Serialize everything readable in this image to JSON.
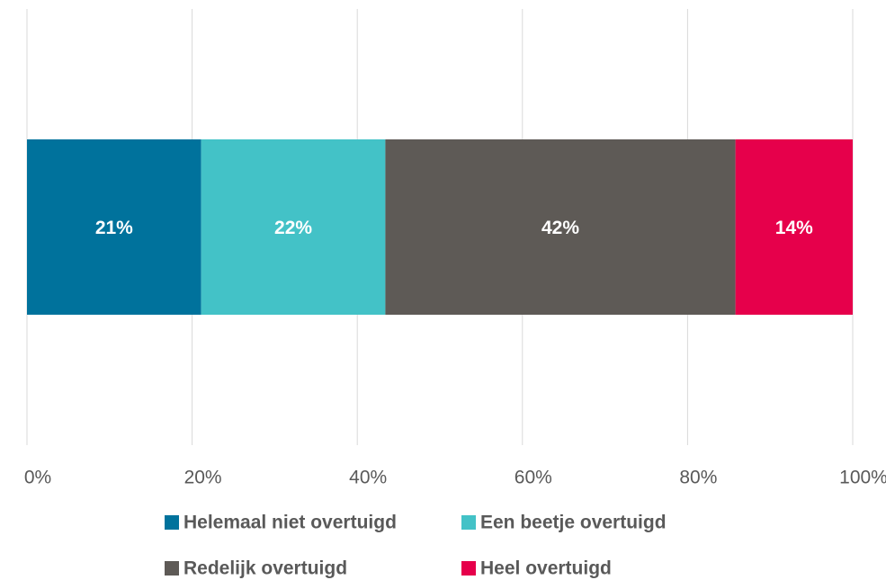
{
  "chart_data": {
    "type": "stacked_bar_horizontal",
    "categories": [
      null
    ],
    "series": [
      {
        "name": "Helemaal niet overtuigd",
        "color": "#00729c",
        "values": [
          21.1
        ],
        "value_labels": [
          "21%"
        ]
      },
      {
        "name": "Een beetje overtuigd",
        "color": "#43c2c7",
        "values": [
          22.3
        ],
        "value_labels": [
          "22%"
        ]
      },
      {
        "name": "Redelijk overtuigd",
        "color": "#5e5a56",
        "values": [
          42.4
        ],
        "value_labels": [
          "42%"
        ]
      },
      {
        "name": "Heel overtuigd",
        "color": "#e6004b",
        "values": [
          14.2
        ],
        "value_labels": [
          "14%"
        ]
      }
    ],
    "xlim": [
      0,
      100
    ],
    "xticks": [
      {
        "value": 0,
        "label": "0%"
      },
      {
        "value": 20,
        "label": "20%"
      },
      {
        "value": 40,
        "label": "40%"
      },
      {
        "value": 60,
        "label": "60%"
      },
      {
        "value": 80,
        "label": "80%"
      },
      {
        "value": 100,
        "label": "100%"
      }
    ],
    "grid": true,
    "legend": "bottom"
  }
}
